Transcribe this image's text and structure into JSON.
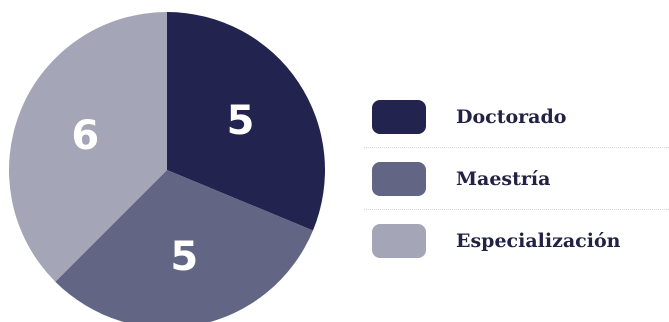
{
  "chart_data": {
    "type": "pie",
    "categories": [
      "Doctorado",
      "Maestría",
      "Especialización"
    ],
    "values": [
      5,
      5,
      6
    ],
    "colors": [
      "#22234f",
      "#626684",
      "#a4a6b8"
    ],
    "data_labels": [
      "5",
      "5",
      "6"
    ],
    "legend_position": "right"
  }
}
